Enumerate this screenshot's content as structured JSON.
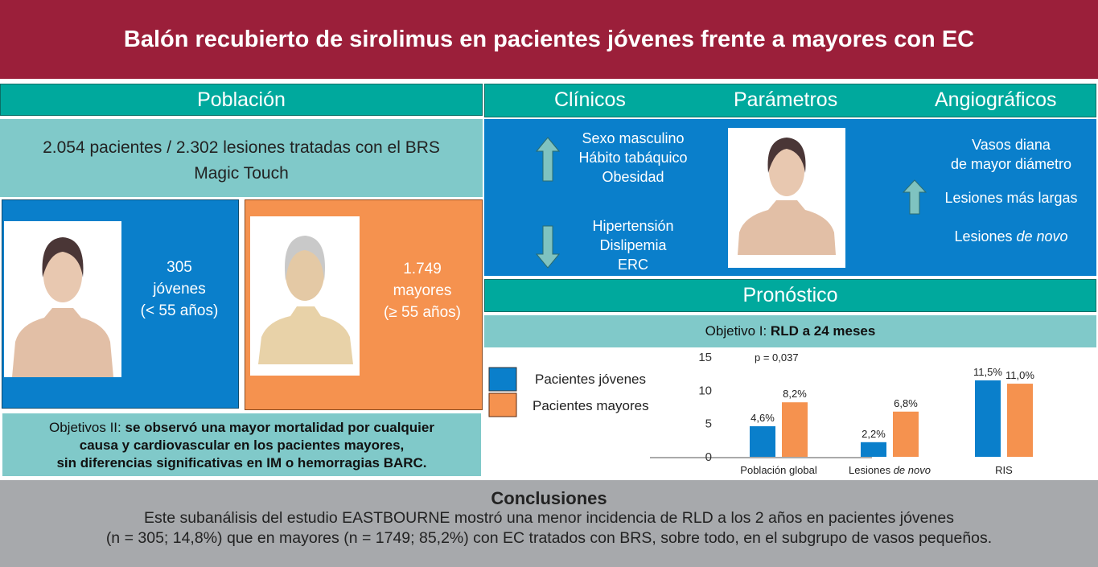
{
  "title": "Balón recubierto de sirolimus en pacientes jóvenes frente a mayores con EC",
  "poblacion": {
    "header": "Población",
    "summary_line1": "2.054 pacientes / 2.302 lesiones tratadas con el BRS",
    "summary_line2": "Magic Touch",
    "young": {
      "count": "305",
      "label": "jóvenes",
      "age": "(< 55 años)"
    },
    "old": {
      "count": "1.749",
      "label": "mayores",
      "age": "(≥ 55 años)"
    },
    "objetivos_prefix": "Objetivos II: ",
    "objetivos_bold1": "se observó una mayor mortalidad por cualquier",
    "objetivos_bold2": "causa y cardiovascular en los pacientes mayores,",
    "objetivos_bold3": "sin diferencias significativas en IM o hemorragias BARC."
  },
  "parametros": {
    "clinicos": "Clínicos",
    "parametros": "Parámetros",
    "angiograficos": "Angiográficos",
    "up_clinical": [
      "Sexo masculino",
      "Hábito tabáquico",
      "Obesidad"
    ],
    "down_clinical": [
      "Hipertensión",
      "Dislipemia",
      "ERC"
    ],
    "angio": {
      "line1": "Vasos diana",
      "line2": "de mayor diámetro",
      "line3": "Lesiones más largas",
      "line4_prefix": "Lesiones ",
      "line4_italic": "de novo"
    }
  },
  "pronostico": {
    "header": "Pronóstico",
    "objective_prefix": "Objetivo I: ",
    "objective_bold": "RLD a 24 meses"
  },
  "colors": {
    "young": "#0a7fcb",
    "old": "#f5924f",
    "header": "#9b1f3a",
    "teal": "#00a99d"
  },
  "chart_data": {
    "type": "bar",
    "categories": [
      "Población global",
      "Lesiones de novo",
      "RIS"
    ],
    "series": [
      {
        "name": "Pacientes jóvenes",
        "values": [
          4.6,
          2.2,
          11.5
        ],
        "labels": [
          "4,6%",
          "2,2%",
          "11,5%"
        ]
      },
      {
        "name": "Pacientes mayores",
        "values": [
          8.2,
          6.8,
          11.0
        ],
        "labels": [
          "8,2%",
          "6,8%",
          "11,0%"
        ]
      }
    ],
    "yticks": [
      "0",
      "5",
      "10",
      "15"
    ],
    "ylim": [
      0,
      15
    ],
    "annotation": "p = 0,037",
    "legend": "left",
    "grid": false
  },
  "conclusions": {
    "title": "Conclusiones",
    "line1": "Este subanálisis del estudio EASTBOURNE mostró una menor incidencia de RLD a los 2 años en pacientes jóvenes",
    "line2": "(n = 305; 14,8%) que en mayores (n = 1749; 85,2%) con EC tratados con BRS, sobre todo, en el subgrupo de vasos pequeños."
  }
}
